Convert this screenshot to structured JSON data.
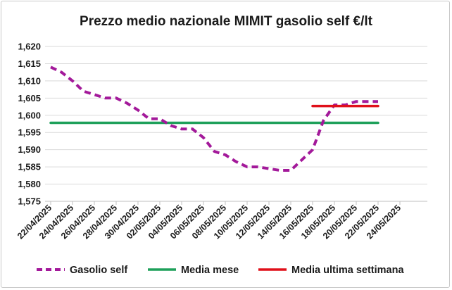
{
  "chart_data": {
    "type": "line",
    "title": "Prezzo medio nazionale MIMIT gasolio self €/lt",
    "xlabel": "",
    "ylabel": "",
    "ylim": [
      1.575,
      1.62
    ],
    "y_ticks": [
      "1,575",
      "1,580",
      "1,585",
      "1,590",
      "1,595",
      "1,600",
      "1,605",
      "1,610",
      "1,615",
      "1,620"
    ],
    "x_ticks": [
      "22/04/2025",
      "24/04/2025",
      "26/04/2025",
      "28/04/2025",
      "30/04/2025",
      "02/05/2025",
      "04/05/2025",
      "06/05/2025",
      "08/05/2025",
      "10/05/2025",
      "12/05/2025",
      "14/05/2025",
      "16/05/2025",
      "18/05/2025",
      "20/05/2025",
      "22/05/2025",
      "24/05/2025"
    ],
    "grid": "horizontal",
    "legend_position": "bottom",
    "series": [
      {
        "name": "Gasolio self",
        "color": "#a3199a",
        "style": "dashed",
        "x": [
          "22/04/2025",
          "23/04/2025",
          "24/04/2025",
          "25/04/2025",
          "26/04/2025",
          "27/04/2025",
          "28/04/2025",
          "29/04/2025",
          "30/04/2025",
          "01/05/2025",
          "02/05/2025",
          "03/05/2025",
          "04/05/2025",
          "05/05/2025",
          "06/05/2025",
          "07/05/2025",
          "08/05/2025",
          "09/05/2025",
          "10/05/2025",
          "11/05/2025",
          "12/05/2025",
          "13/05/2025",
          "14/05/2025",
          "15/05/2025",
          "16/05/2025",
          "17/05/2025",
          "18/05/2025",
          "19/05/2025",
          "20/05/2025",
          "21/05/2025",
          "22/05/2025"
        ],
        "values": [
          1.614,
          1.6125,
          1.61,
          1.607,
          1.606,
          1.605,
          1.605,
          1.6035,
          1.6015,
          1.599,
          1.599,
          1.597,
          1.596,
          1.596,
          1.5935,
          1.5895,
          1.5885,
          1.5865,
          1.585,
          1.585,
          1.5845,
          1.584,
          1.584,
          1.587,
          1.59,
          1.5985,
          1.603,
          1.603,
          1.604,
          1.604,
          1.604
        ]
      },
      {
        "name": "Media mese",
        "color": "#1ea05a",
        "style": "solid",
        "x": [
          "22/04/2025",
          "22/05/2025"
        ],
        "values": [
          1.5978,
          1.5978
        ]
      },
      {
        "name": "Media ultima settimana",
        "color": "#e0101a",
        "style": "solid",
        "x": [
          "16/05/2025",
          "22/05/2025"
        ],
        "values": [
          1.6027,
          1.6027
        ]
      }
    ]
  }
}
